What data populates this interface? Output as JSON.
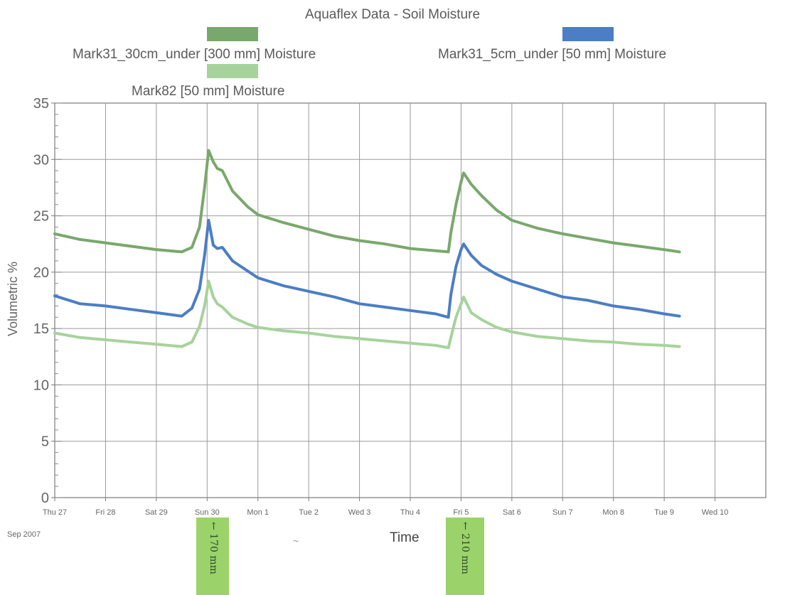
{
  "chart_data": {
    "type": "line",
    "title": "Aquaflex Data - Soil Moisture",
    "xlabel": "Time",
    "ylabel": "Volumetric %",
    "ylim": [
      0,
      35
    ],
    "yticks": [
      "0",
      "5",
      "10",
      "15",
      "20",
      "25",
      "30",
      "35"
    ],
    "xticks": [
      "Thu 27",
      "Fri 28",
      "Sat 29",
      "Sun 30",
      "Mon 1",
      "Tue 2",
      "Wed 3",
      "Thu 4",
      "Fri 5",
      "Sat 6",
      "Sun 7",
      "Mon 8",
      "Tue 9",
      "Wed 10"
    ],
    "x_sublabel": "Sep 2007",
    "grid": true,
    "legend_position": "top",
    "series": [
      {
        "name": "Mark31_30cm_under  [300 mm] Moisture",
        "color": "#79a86c",
        "x": [
          0,
          0.5,
          1,
          1.5,
          2,
          2.5,
          2.7,
          2.85,
          2.95,
          3.03,
          3.12,
          3.2,
          3.3,
          3.5,
          3.8,
          4.0,
          4.5,
          5,
          5.5,
          6,
          6.5,
          7,
          7.5,
          7.75,
          7.8,
          7.9,
          8.0,
          8.05,
          8.2,
          8.4,
          8.7,
          9,
          9.5,
          10,
          10.5,
          11,
          11.5,
          12,
          12.3
        ],
        "values": [
          23.4,
          22.9,
          22.6,
          22.3,
          22.0,
          21.8,
          22.2,
          24.0,
          27.5,
          30.8,
          29.8,
          29.2,
          29.0,
          27.2,
          25.8,
          25.1,
          24.4,
          23.8,
          23.2,
          22.8,
          22.5,
          22.1,
          21.9,
          21.8,
          23.5,
          26.0,
          28.0,
          28.8,
          27.8,
          26.8,
          25.5,
          24.6,
          23.9,
          23.4,
          23.0,
          22.6,
          22.3,
          22.0,
          21.8
        ]
      },
      {
        "name": "Mark31_5cm_under  [50 mm] Moisture",
        "color": "#4b7ec4",
        "x": [
          0,
          0.5,
          1,
          1.5,
          2,
          2.5,
          2.7,
          2.85,
          2.95,
          3.03,
          3.12,
          3.2,
          3.3,
          3.5,
          3.8,
          4.0,
          4.5,
          5,
          5.5,
          6,
          6.5,
          7,
          7.5,
          7.75,
          7.8,
          7.9,
          8.0,
          8.05,
          8.2,
          8.4,
          8.7,
          9,
          9.5,
          10,
          10.5,
          11,
          11.5,
          12,
          12.3
        ],
        "values": [
          17.9,
          17.2,
          17.0,
          16.7,
          16.4,
          16.1,
          16.8,
          18.5,
          21.5,
          24.6,
          22.4,
          22.1,
          22.2,
          21.0,
          20.1,
          19.5,
          18.8,
          18.3,
          17.8,
          17.2,
          16.9,
          16.6,
          16.3,
          16.0,
          18.0,
          20.5,
          22.0,
          22.5,
          21.5,
          20.6,
          19.8,
          19.2,
          18.5,
          17.8,
          17.5,
          17.0,
          16.7,
          16.3,
          16.1
        ]
      },
      {
        "name": "Mark82  [50 mm] Moisture",
        "color": "#a6d39b",
        "x": [
          0,
          0.5,
          1,
          1.5,
          2,
          2.5,
          2.7,
          2.85,
          2.95,
          3.03,
          3.12,
          3.2,
          3.3,
          3.5,
          3.8,
          4.0,
          4.5,
          5,
          5.5,
          6,
          6.5,
          7,
          7.5,
          7.75,
          7.8,
          7.9,
          8.0,
          8.05,
          8.2,
          8.4,
          8.7,
          9,
          9.5,
          10,
          10.5,
          11,
          11.5,
          12,
          12.3
        ],
        "values": [
          14.6,
          14.2,
          14.0,
          13.8,
          13.6,
          13.4,
          13.8,
          15.2,
          17.0,
          19.2,
          17.8,
          17.2,
          16.9,
          16.0,
          15.4,
          15.1,
          14.8,
          14.6,
          14.3,
          14.1,
          13.9,
          13.7,
          13.5,
          13.3,
          14.2,
          16.0,
          17.2,
          17.8,
          16.4,
          15.8,
          15.1,
          14.7,
          14.3,
          14.1,
          13.9,
          13.8,
          13.6,
          13.5,
          13.4
        ]
      }
    ]
  },
  "annotations": {
    "note1": "← 170 mm",
    "note2": "← 210 mm"
  }
}
